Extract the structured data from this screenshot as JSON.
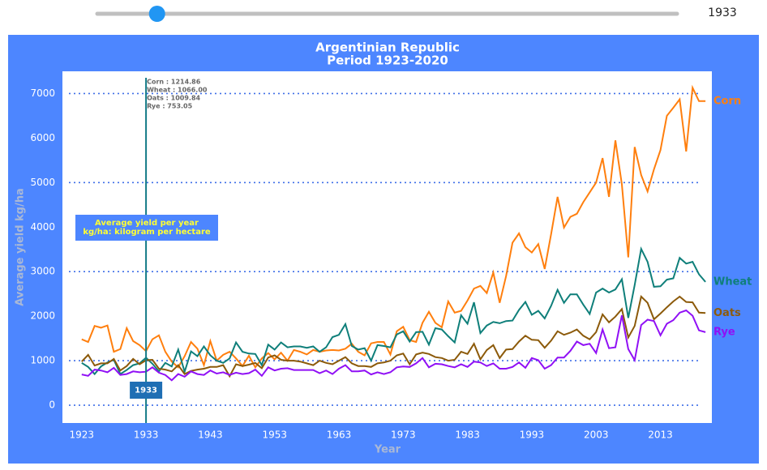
{
  "slider": {
    "value": 1933
  },
  "chart_data": {
    "type": "line",
    "title": "Argentinian Republic",
    "subtitle": "Period 1923-2020",
    "x_label": "Year",
    "y_label": "Average yield kg/ha",
    "annotation": [
      "Average yield per year",
      "kg/ha: kilogram per hectare"
    ],
    "hover_x": 1933,
    "hover_lines": [
      "Corn : 1214.86",
      "Wheat : 1066.00",
      "Oats : 1009.84",
      "Rye : 753.05"
    ],
    "xlim": [
      1920,
      2021
    ],
    "ylim": [
      -400,
      7500
    ],
    "xticks": [
      1923,
      1933,
      1943,
      1953,
      1963,
      1973,
      1983,
      1993,
      2003,
      2013
    ],
    "yticks": [
      0,
      1000,
      2000,
      3000,
      4000,
      5000,
      6000,
      7000
    ],
    "grid_values": [
      0,
      1000,
      3000,
      5000,
      7000
    ],
    "x": [
      1923,
      1924,
      1925,
      1926,
      1927,
      1928,
      1929,
      1930,
      1931,
      1932,
      1933,
      1934,
      1935,
      1936,
      1937,
      1938,
      1939,
      1940,
      1941,
      1942,
      1943,
      1944,
      1945,
      1946,
      1947,
      1948,
      1949,
      1950,
      1951,
      1952,
      1953,
      1954,
      1955,
      1956,
      1957,
      1958,
      1959,
      1960,
      1961,
      1962,
      1963,
      1964,
      1965,
      1966,
      1967,
      1968,
      1969,
      1970,
      1971,
      1972,
      1973,
      1974,
      1975,
      1976,
      1977,
      1978,
      1979,
      1980,
      1981,
      1982,
      1983,
      1984,
      1985,
      1986,
      1987,
      1988,
      1989,
      1990,
      1991,
      1992,
      1993,
      1994,
      1995,
      1996,
      1997,
      1998,
      1999,
      2000,
      2001,
      2002,
      2003,
      2004,
      2005,
      2006,
      2007,
      2008,
      2009,
      2010,
      2011,
      2012,
      2013,
      2014,
      2015,
      2016,
      2017,
      2018,
      2019,
      2020
    ],
    "series": [
      {
        "name": "Corn",
        "color": "#ff7f0e",
        "values": [
          1480,
          1420,
          1780,
          1740,
          1790,
          1200,
          1260,
          1730,
          1440,
          1350,
          1215,
          1480,
          1570,
          1200,
          980,
          850,
          1100,
          1420,
          1270,
          900,
          1440,
          1000,
          1130,
          1200,
          1050,
          880,
          1110,
          850,
          1050,
          1170,
          1030,
          1180,
          1000,
          1240,
          1200,
          1140,
          1240,
          1200,
          1230,
          1240,
          1230,
          1270,
          1380,
          1200,
          1120,
          1390,
          1420,
          1420,
          1140,
          1660,
          1760,
          1460,
          1420,
          1850,
          2100,
          1850,
          1750,
          2330,
          2080,
          2120,
          2350,
          2620,
          2680,
          2520,
          2980,
          2300,
          2900,
          3650,
          3860,
          3550,
          3430,
          3620,
          3060,
          3840,
          4680,
          3990,
          4230,
          4300,
          4560,
          4780,
          5000,
          5550,
          4680,
          5950,
          4960,
          3320,
          5800,
          5170,
          4800,
          5300,
          5730,
          6500,
          6680,
          6870,
          5700,
          7130,
          6830,
          6830
        ]
      },
      {
        "name": "Wheat",
        "color": "#0f7f7a",
        "values": [
          950,
          860,
          700,
          870,
          960,
          1020,
          700,
          790,
          900,
          940,
          1066,
          930,
          760,
          950,
          870,
          1250,
          750,
          1210,
          1100,
          1320,
          1120,
          1000,
          950,
          1050,
          1410,
          1200,
          1160,
          1150,
          900,
          1360,
          1250,
          1410,
          1300,
          1320,
          1320,
          1290,
          1320,
          1200,
          1300,
          1530,
          1580,
          1820,
          1330,
          1250,
          1280,
          1000,
          1350,
          1330,
          1300,
          1590,
          1660,
          1430,
          1640,
          1650,
          1360,
          1730,
          1700,
          1550,
          1410,
          2020,
          1830,
          2310,
          1620,
          1790,
          1870,
          1840,
          1890,
          1900,
          2140,
          2320,
          2030,
          2120,
          1950,
          2230,
          2590,
          2300,
          2490,
          2490,
          2260,
          2050,
          2530,
          2620,
          2530,
          2600,
          2830,
          1960,
          2700,
          3510,
          3220,
          2660,
          2670,
          2820,
          2850,
          3310,
          3180,
          3220,
          2940,
          2770
        ]
      },
      {
        "name": "Oats",
        "color": "#8c5a0a",
        "values": [
          980,
          1130,
          890,
          940,
          940,
          1040,
          780,
          880,
          1040,
          920,
          1010,
          1020,
          820,
          800,
          760,
          900,
          700,
          770,
          800,
          820,
          860,
          860,
          900,
          650,
          920,
          880,
          910,
          950,
          830,
          1070,
          1120,
          1020,
          1000,
          1000,
          980,
          940,
          900,
          1000,
          950,
          920,
          1000,
          1080,
          940,
          880,
          880,
          860,
          940,
          960,
          1000,
          1120,
          1160,
          920,
          1140,
          1180,
          1150,
          1080,
          1060,
          1000,
          1020,
          1200,
          1150,
          1380,
          1030,
          1240,
          1350,
          1060,
          1250,
          1260,
          1430,
          1560,
          1470,
          1460,
          1290,
          1450,
          1660,
          1580,
          1630,
          1700,
          1560,
          1480,
          1640,
          2040,
          1860,
          1990,
          2160,
          1520,
          1780,
          2440,
          2300,
          1930,
          2060,
          2200,
          2330,
          2440,
          2320,
          2310,
          2080,
          2070
        ]
      },
      {
        "name": "Rye",
        "color": "#9010f5",
        "values": [
          690,
          660,
          800,
          780,
          740,
          840,
          680,
          700,
          760,
          740,
          753,
          850,
          730,
          680,
          560,
          700,
          640,
          760,
          700,
          680,
          780,
          710,
          740,
          680,
          730,
          700,
          720,
          800,
          660,
          850,
          780,
          820,
          830,
          790,
          790,
          790,
          790,
          720,
          780,
          700,
          820,
          900,
          760,
          760,
          780,
          690,
          740,
          700,
          740,
          850,
          870,
          860,
          940,
          1060,
          850,
          930,
          920,
          880,
          850,
          920,
          860,
          980,
          960,
          880,
          940,
          820,
          820,
          860,
          960,
          840,
          1060,
          1010,
          820,
          900,
          1070,
          1070,
          1220,
          1430,
          1350,
          1380,
          1170,
          1700,
          1280,
          1300,
          2020,
          1260,
          1010,
          1800,
          1920,
          1890,
          1570,
          1830,
          1910,
          2080,
          2130,
          2010,
          1680,
          1640
        ]
      }
    ]
  }
}
